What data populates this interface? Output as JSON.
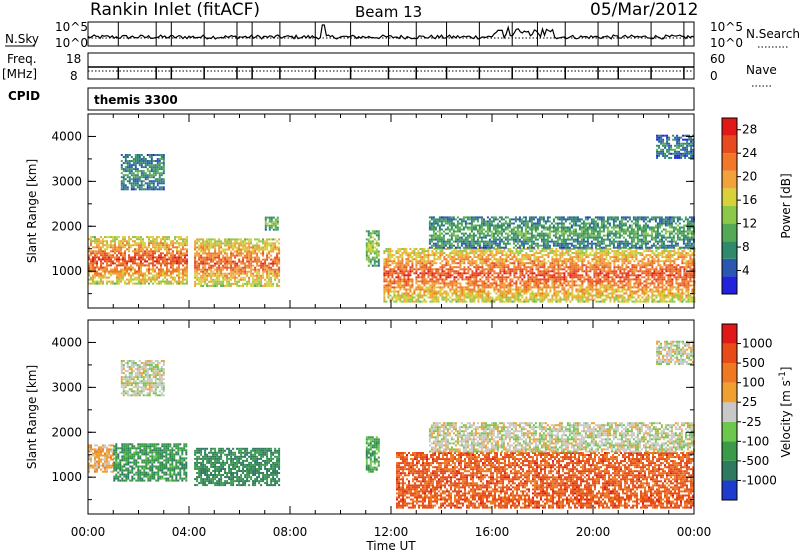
{
  "header": {
    "station": "Rankin Inlet (fitACF)",
    "beam": "Beam 13",
    "date": "05/Mar/2012"
  },
  "labels": {
    "nsky": "N.Sky",
    "nsearch": "N.Search",
    "freq": "Freq.",
    "freq_unit": "[MHz]",
    "nave": "Nave",
    "cpid": "CPID",
    "cpid_value": "themis 3300",
    "tick_nsky_top": "10^5",
    "tick_nsky_bottom": "10^0",
    "tick_freq_top": "18",
    "tick_freq_bottom": "8",
    "tick_nave_top": "60",
    "tick_nave_bottom": "0"
  },
  "chart_data": [
    {
      "type": "heatmap",
      "title": "",
      "xlabel": "Time UT",
      "ylabel": "Slant Range [km]",
      "x_ticks": [
        "00:00",
        "04:00",
        "08:00",
        "12:00",
        "16:00",
        "20:00",
        "00:00"
      ],
      "y_ticks": [
        "1000",
        "2000",
        "3000",
        "4000"
      ],
      "xlim_hours": [
        0,
        24
      ],
      "ylim_km": [
        180,
        4500
      ],
      "colorbar": {
        "label": "Power [dB]",
        "ticks": [
          "4",
          "8",
          "12",
          "16",
          "20",
          "24",
          "28"
        ],
        "range": [
          0,
          30
        ],
        "colors": [
          "#2222dd",
          "#2a58b0",
          "#2e8a6a",
          "#55a855",
          "#8cc84a",
          "#d7d23a",
          "#f2a23a",
          "#f07828",
          "#e84a20",
          "#e01818"
        ]
      },
      "bands": [
        {
          "t0": 0.0,
          "t1": 3.9,
          "r0": 700,
          "r1": 1750,
          "level": 0.85
        },
        {
          "t0": 4.2,
          "t1": 7.6,
          "r0": 650,
          "r1": 1700,
          "level": 0.82
        },
        {
          "t0": 1.3,
          "t1": 3.0,
          "r0": 2800,
          "r1": 3600,
          "level": 0.3
        },
        {
          "t0": 7.0,
          "t1": 7.5,
          "r0": 1900,
          "r1": 2200,
          "level": 0.45
        },
        {
          "t0": 11.0,
          "t1": 11.5,
          "r0": 1100,
          "r1": 1900,
          "level": 0.5
        },
        {
          "t0": 11.7,
          "t1": 24.0,
          "r0": 300,
          "r1": 1500,
          "level": 0.85
        },
        {
          "t0": 13.5,
          "t1": 24.0,
          "r0": 1500,
          "r1": 2200,
          "level": 0.35
        },
        {
          "t0": 22.5,
          "t1": 24.0,
          "r0": 3500,
          "r1": 4000,
          "level": 0.25
        }
      ]
    },
    {
      "type": "heatmap",
      "title": "",
      "xlabel": "Time UT",
      "ylabel": "Slant Range [km]",
      "x_ticks": [
        "00:00",
        "04:00",
        "08:00",
        "12:00",
        "16:00",
        "20:00",
        "00:00"
      ],
      "y_ticks": [
        "1000",
        "2000",
        "3000",
        "4000"
      ],
      "xlim_hours": [
        0,
        24
      ],
      "ylim_km": [
        180,
        4500
      ],
      "colorbar": {
        "label": "Velocity [m s",
        "label_superscript": "-1",
        "label_end": "]",
        "ticks": [
          "1000",
          "500",
          "100",
          "25",
          "-25",
          "-100",
          "-500",
          "-1000"
        ],
        "colors": [
          "#1e3ccc",
          "#2e7a60",
          "#3a9a4a",
          "#6cc84c",
          "#c8c8c8",
          "#f0a030",
          "#f07820",
          "#e84a18",
          "#e01818"
        ]
      },
      "bands": [
        {
          "t0": 0.0,
          "t1": 1.0,
          "r0": 1100,
          "r1": 1700,
          "level": 0.6
        },
        {
          "t0": 1.0,
          "t1": 3.9,
          "r0": 900,
          "r1": 1750,
          "level": 0.25
        },
        {
          "t0": 4.2,
          "t1": 7.6,
          "r0": 800,
          "r1": 1650,
          "level": 0.22
        },
        {
          "t0": 1.3,
          "t1": 3.0,
          "r0": 2800,
          "r1": 3600,
          "level": 0.5
        },
        {
          "t0": 11.0,
          "t1": 11.5,
          "r0": 1100,
          "r1": 1900,
          "level": 0.3
        },
        {
          "t0": 12.2,
          "t1": 24.0,
          "r0": 300,
          "r1": 1550,
          "level": 0.8
        },
        {
          "t0": 13.5,
          "t1": 24.0,
          "r0": 1550,
          "r1": 2200,
          "level": 0.5
        },
        {
          "t0": 22.5,
          "t1": 24.0,
          "r0": 3500,
          "r1": 4000,
          "level": 0.5
        }
      ]
    }
  ]
}
